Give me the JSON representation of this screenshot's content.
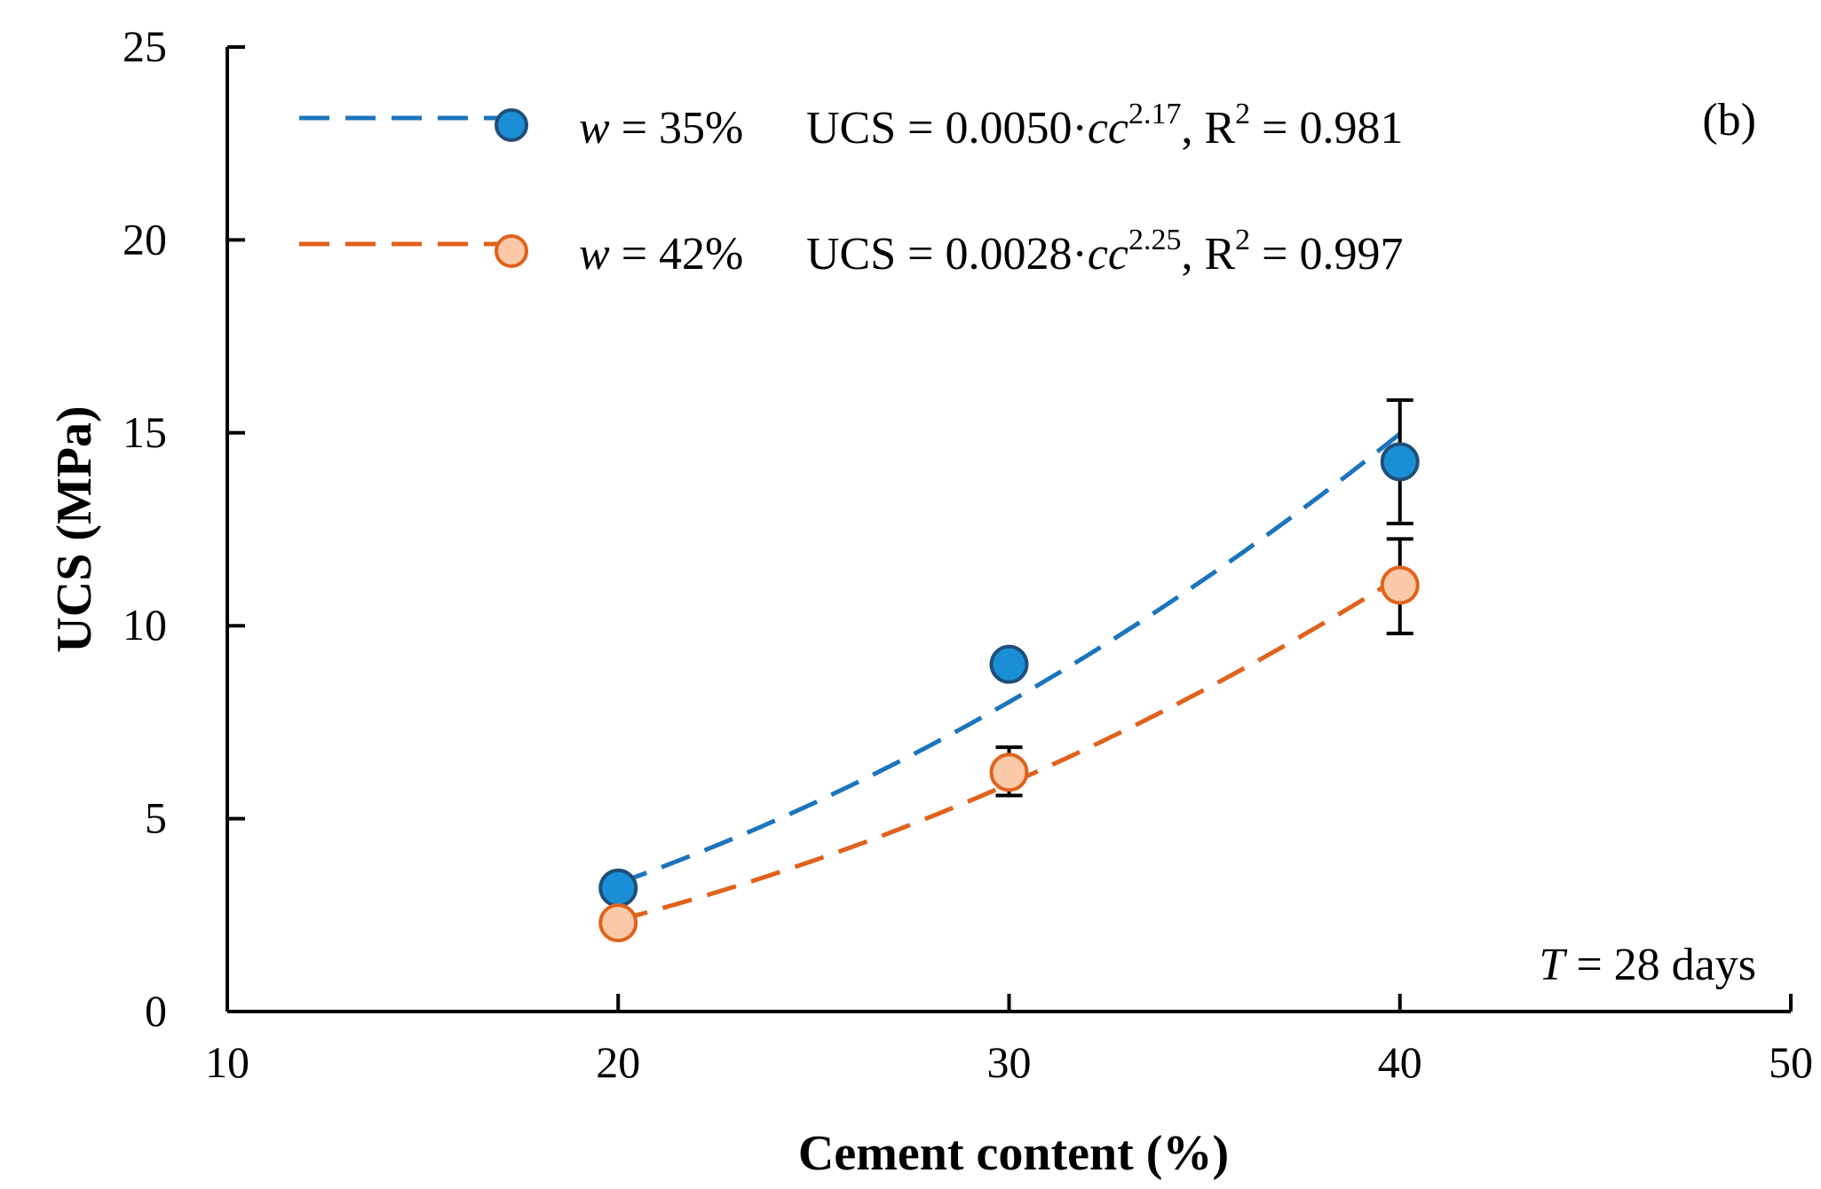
{
  "chart_data": {
    "type": "scatter",
    "title": "",
    "xlabel": "Cement content (%)",
    "ylabel": "UCS (MPa)",
    "xlim": [
      10,
      50
    ],
    "ylim": [
      0,
      25
    ],
    "xticks": [
      10,
      20,
      30,
      40,
      50
    ],
    "yticks": [
      0,
      5,
      10,
      15,
      20,
      25
    ],
    "grid": false,
    "legend_position": "top-left",
    "panel_label": "(b)",
    "annotation": {
      "var": "T",
      "text": " = 28 days"
    },
    "series": [
      {
        "name": "w = 35%",
        "var": "w",
        "label_rest": " = 35%",
        "color": "#1a8fd6",
        "edge_color": "#1f4e79",
        "line_color": "#1c75bc",
        "x": [
          20,
          30,
          40
        ],
        "y": [
          3.2,
          9.0,
          14.25
        ],
        "err_x": [
          40
        ],
        "err_low": [
          12.65
        ],
        "err_high": [
          15.85
        ],
        "fit": {
          "a": 0.005,
          "b": 2.17,
          "x_range": [
            20,
            40
          ]
        },
        "equation": {
          "prefix": "UCS = 0.0050·",
          "var": "cc",
          "exponent": "2.17",
          "r2_value": " = 0.981"
        }
      },
      {
        "name": "w = 42%",
        "var": "w",
        "label_rest": " = 42%",
        "color": "#fbc9a8",
        "edge_color": "#e0621c",
        "line_color": "#e0621c",
        "x": [
          20,
          30,
          40
        ],
        "y": [
          2.3,
          6.2,
          11.05
        ],
        "err_x": [
          30,
          40
        ],
        "err_low": [
          5.6,
          9.8
        ],
        "err_high": [
          6.85,
          12.25
        ],
        "fit": {
          "a": 0.0028,
          "b": 2.25,
          "x_range": [
            20,
            40
          ]
        },
        "equation": {
          "prefix": "UCS = 0.0028·",
          "var": "cc",
          "exponent": "2.25",
          "r2_value": " = 0.997"
        }
      }
    ]
  }
}
